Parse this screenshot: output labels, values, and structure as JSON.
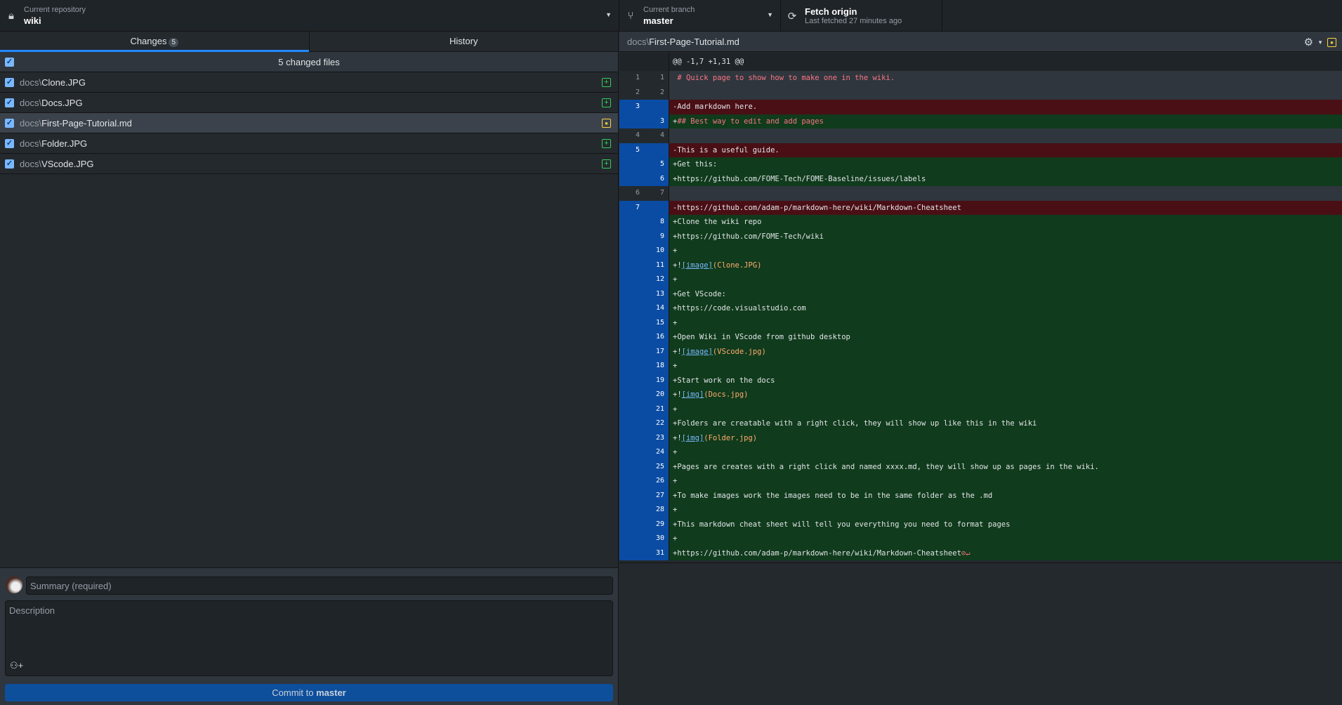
{
  "toolbar": {
    "repo": {
      "label": "Current repository",
      "value": "wiki",
      "icon": "lock-icon"
    },
    "branch": {
      "label": "Current branch",
      "value": "master",
      "icon": "git-branch-icon"
    },
    "fetch": {
      "label": "Fetch origin",
      "sub": "Last fetched 27 minutes ago",
      "icon": "sync-icon"
    }
  },
  "tabs": [
    {
      "label": "Changes",
      "badge": "5"
    },
    {
      "label": "History"
    }
  ],
  "changes": {
    "header": "5 changed files",
    "files": [
      {
        "dir": "docs\\",
        "name": "Clone.JPG",
        "status": "added"
      },
      {
        "dir": "docs\\",
        "name": "Docs.JPG",
        "status": "added"
      },
      {
        "dir": "docs\\",
        "name": "First-Page-Tutorial.md",
        "status": "modified",
        "selected": true
      },
      {
        "dir": "docs\\",
        "name": "Folder.JPG",
        "status": "added"
      },
      {
        "dir": "docs\\",
        "name": "VScode.JPG",
        "status": "added"
      }
    ]
  },
  "commit": {
    "summary_placeholder": "Summary (required)",
    "description_placeholder": "Description",
    "button_prefix": "Commit to ",
    "button_branch": "master"
  },
  "diff": {
    "file_dir": "docs\\",
    "file_name": "First-Page-Tutorial.md",
    "colors": {
      "added": "#103b1c",
      "deleted": "#4a0f15",
      "gutter_changed": "#0a4ca4"
    },
    "lines": [
      {
        "type": "hunk",
        "old": "",
        "new": "",
        "parts": [
          {
            "t": "@@ -1,7 +1,31 @@"
          }
        ]
      },
      {
        "type": "ctx",
        "old": "1",
        "new": "1",
        "parts": [
          {
            "t": " # Quick page to show how to make one in the wiki.",
            "c": "hd"
          }
        ]
      },
      {
        "type": "ctx",
        "old": "2",
        "new": "2",
        "parts": [
          {
            "t": ""
          }
        ]
      },
      {
        "type": "del",
        "old": "3",
        "new": "",
        "parts": [
          {
            "t": "-Add markdown here."
          }
        ]
      },
      {
        "type": "add",
        "old": "",
        "new": "3",
        "parts": [
          {
            "t": "+"
          },
          {
            "t": "## Best way to edit and add pages",
            "c": "hd"
          }
        ]
      },
      {
        "type": "ctx",
        "old": "4",
        "new": "4",
        "parts": [
          {
            "t": ""
          }
        ]
      },
      {
        "type": "del",
        "old": "5",
        "new": "",
        "parts": [
          {
            "t": "-This is a useful guide."
          }
        ]
      },
      {
        "type": "add",
        "old": "",
        "new": "5",
        "parts": [
          {
            "t": "+Get this:"
          }
        ]
      },
      {
        "type": "add",
        "old": "",
        "new": "6",
        "parts": [
          {
            "t": "+https://github.com/FOME-Tech/FOME-Baseline/issues/labels"
          }
        ]
      },
      {
        "type": "ctx",
        "old": "6",
        "new": "7",
        "parts": [
          {
            "t": ""
          }
        ]
      },
      {
        "type": "del",
        "old": "7",
        "new": "",
        "parts": [
          {
            "t": "-https://github.com/adam-p/markdown-here/wiki/Markdown-Cheatsheet"
          }
        ]
      },
      {
        "type": "add",
        "old": "",
        "new": "8",
        "parts": [
          {
            "t": "+Clone the wiki repo"
          }
        ]
      },
      {
        "type": "add",
        "old": "",
        "new": "9",
        "parts": [
          {
            "t": "+https://github.com/FOME-Tech/wiki"
          }
        ]
      },
      {
        "type": "add",
        "old": "",
        "new": "10",
        "parts": [
          {
            "t": "+"
          }
        ]
      },
      {
        "type": "add",
        "old": "",
        "new": "11",
        "parts": [
          {
            "t": "+!"
          },
          {
            "t": "[image]",
            "c": "lk"
          },
          {
            "t": "(Clone.JPG)",
            "c": "pr"
          }
        ]
      },
      {
        "type": "add",
        "old": "",
        "new": "12",
        "parts": [
          {
            "t": "+"
          }
        ]
      },
      {
        "type": "add",
        "old": "",
        "new": "13",
        "parts": [
          {
            "t": "+Get VScode:"
          }
        ]
      },
      {
        "type": "add",
        "old": "",
        "new": "14",
        "parts": [
          {
            "t": "+https://code.visualstudio.com"
          }
        ]
      },
      {
        "type": "add",
        "old": "",
        "new": "15",
        "parts": [
          {
            "t": "+"
          }
        ]
      },
      {
        "type": "add",
        "old": "",
        "new": "16",
        "parts": [
          {
            "t": "+Open Wiki in VScode from github desktop"
          }
        ]
      },
      {
        "type": "add",
        "old": "",
        "new": "17",
        "parts": [
          {
            "t": "+!"
          },
          {
            "t": "[image]",
            "c": "lk"
          },
          {
            "t": "(VScode.jpg)",
            "c": "pr"
          }
        ]
      },
      {
        "type": "add",
        "old": "",
        "new": "18",
        "parts": [
          {
            "t": "+"
          }
        ]
      },
      {
        "type": "add",
        "old": "",
        "new": "19",
        "parts": [
          {
            "t": "+Start work on the docs"
          }
        ]
      },
      {
        "type": "add",
        "old": "",
        "new": "20",
        "parts": [
          {
            "t": "+!"
          },
          {
            "t": "[img]",
            "c": "lk"
          },
          {
            "t": "(Docs.jpg)",
            "c": "pr"
          }
        ]
      },
      {
        "type": "add",
        "old": "",
        "new": "21",
        "parts": [
          {
            "t": "+"
          }
        ]
      },
      {
        "type": "add",
        "old": "",
        "new": "22",
        "parts": [
          {
            "t": "+Folders are creatable with a right click, they will show up like this in the wiki"
          }
        ]
      },
      {
        "type": "add",
        "old": "",
        "new": "23",
        "parts": [
          {
            "t": "+!"
          },
          {
            "t": "[img]",
            "c": "lk"
          },
          {
            "t": "(Folder.jpg)",
            "c": "pr"
          }
        ]
      },
      {
        "type": "add",
        "old": "",
        "new": "24",
        "parts": [
          {
            "t": "+"
          }
        ]
      },
      {
        "type": "add",
        "old": "",
        "new": "25",
        "parts": [
          {
            "t": "+Pages are creates with a right click and named xxxx.md, they will show up as pages in the wiki."
          }
        ]
      },
      {
        "type": "add",
        "old": "",
        "new": "26",
        "parts": [
          {
            "t": "+"
          }
        ]
      },
      {
        "type": "add",
        "old": "",
        "new": "27",
        "parts": [
          {
            "t": "+To make images work the images need to be in the same folder as the .md"
          }
        ]
      },
      {
        "type": "add",
        "old": "",
        "new": "28",
        "parts": [
          {
            "t": "+"
          }
        ]
      },
      {
        "type": "add",
        "old": "",
        "new": "29",
        "parts": [
          {
            "t": "+This markdown cheat sheet will tell you everything you need to format pages"
          }
        ]
      },
      {
        "type": "add",
        "old": "",
        "new": "30",
        "parts": [
          {
            "t": "+"
          }
        ]
      },
      {
        "type": "add",
        "old": "",
        "new": "31",
        "parts": [
          {
            "t": "+https://github.com/adam-p/markdown-here/wiki/Markdown-Cheatsheet"
          },
          {
            "t": "⊘↵",
            "c": "nl"
          }
        ]
      }
    ]
  }
}
